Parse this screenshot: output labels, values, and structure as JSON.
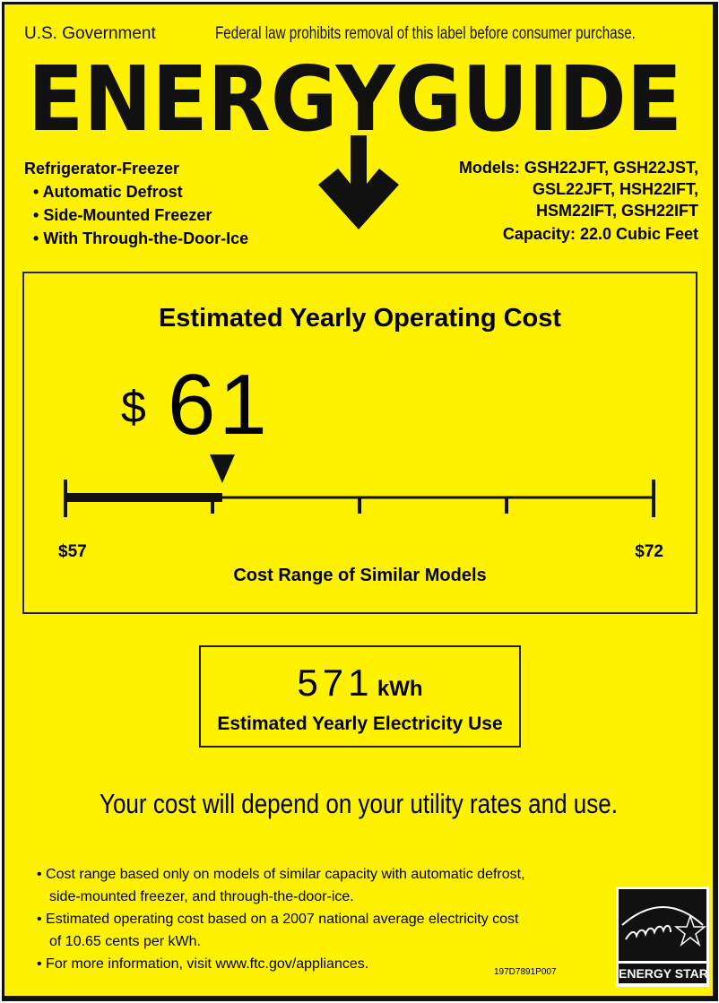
{
  "header": {
    "government": "U.S. Government",
    "legal_notice": "Federal law prohibits removal of this label before consumer purchase.",
    "logo": "ENERGYGUIDE"
  },
  "product": {
    "type": "Refrigerator-Freezer",
    "features": [
      "Automatic Defrost",
      "Side-Mounted Freezer",
      "With Through-the-Door-Ice"
    ],
    "models_lines": [
      "Models: GSH22JFT, GSH22JST,",
      "GSL22JFT, HSH22IFT,",
      "HSM22IFT, GSH22IFT"
    ],
    "capacity": "Capacity: 22.0 Cubic Feet"
  },
  "cost": {
    "title": "Estimated Yearly Operating Cost",
    "currency": "$",
    "value": "61",
    "range_min_label": "$57",
    "range_max_label": "$72",
    "range_min": 57,
    "range_max": 72,
    "current": 61,
    "range_caption": "Cost Range of Similar Models"
  },
  "electricity": {
    "value": "571",
    "unit": "kWh",
    "caption": "Estimated Yearly Electricity Use"
  },
  "disclaimer": "Your cost will depend on your utility rates and use.",
  "notes": [
    [
      "Cost range based only on models of similar capacity with automatic defrost,",
      "side-mounted freezer, and through-the-door-ice."
    ],
    [
      "Estimated operating cost based on a 2007 national average electricity cost",
      "of 10.65 cents per kWh."
    ],
    [
      "For more information, visit www.ftc.gov/appliances."
    ]
  ],
  "label_code": "197D7891P007",
  "energy_star": {
    "script": "energy",
    "caption": "ENERGY STAR"
  },
  "colors": {
    "background": "#fff200",
    "ink": "#111111"
  }
}
